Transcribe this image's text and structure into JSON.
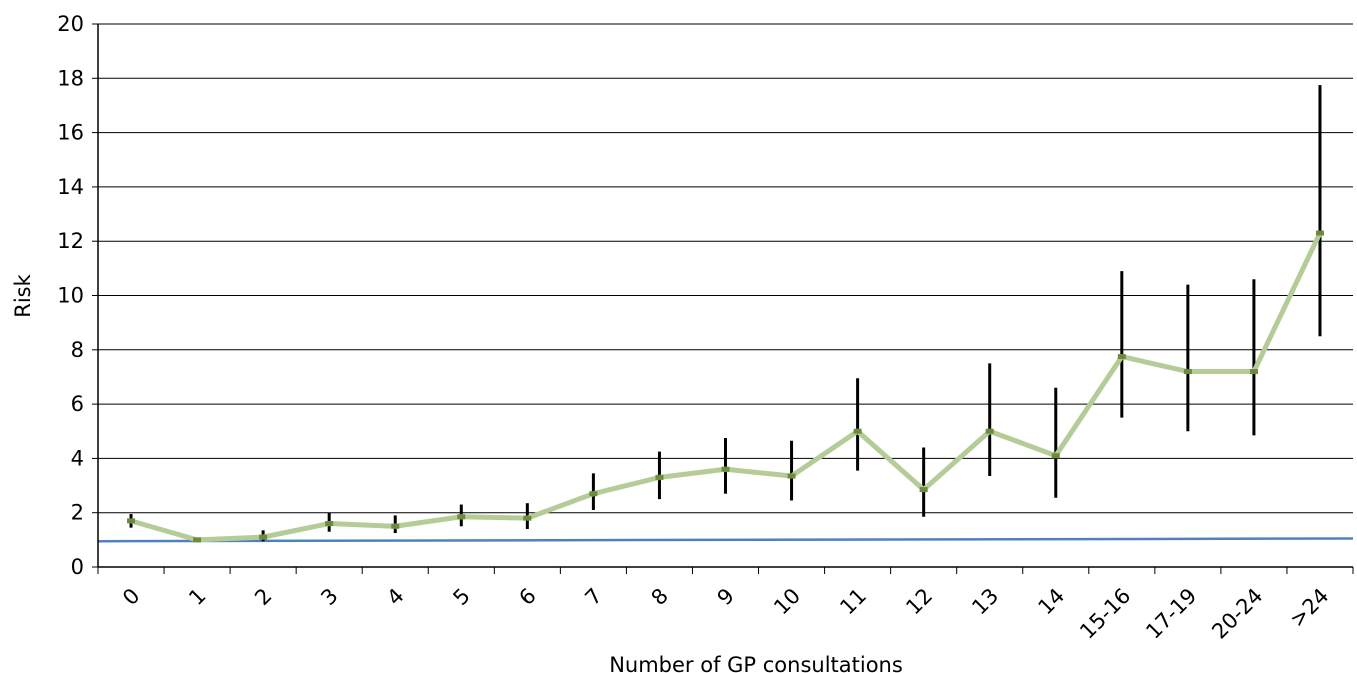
{
  "chart_data": {
    "type": "line",
    "title": "",
    "xlabel": "Number of GP consultations",
    "ylabel": "Risk",
    "ylim": [
      0,
      20
    ],
    "yticks": [
      0,
      2,
      4,
      6,
      8,
      10,
      12,
      14,
      16,
      18,
      20
    ],
    "grid": true,
    "legend": "none",
    "categories": [
      "0",
      "1",
      "2",
      "3",
      "4",
      "5",
      "6",
      "7",
      "8",
      "9",
      "10",
      "11",
      "12",
      "13",
      "14",
      "15-16",
      "17-19",
      "20-24",
      ">24"
    ],
    "series": [
      {
        "color": "#b5cc98",
        "marker_color": "#6e8a3c",
        "values": [
          1.7,
          1.0,
          1.1,
          1.6,
          1.5,
          1.85,
          1.8,
          2.7,
          3.3,
          3.6,
          3.35,
          5.0,
          2.85,
          5.0,
          4.1,
          7.75,
          7.2,
          7.2,
          12.3
        ],
        "error_low": [
          1.45,
          0.95,
          0.95,
          1.3,
          1.25,
          1.5,
          1.4,
          2.1,
          2.5,
          2.7,
          2.45,
          3.55,
          1.85,
          3.35,
          2.55,
          5.5,
          5.0,
          4.85,
          8.5
        ],
        "error_high": [
          1.95,
          1.05,
          1.35,
          2.0,
          1.9,
          2.3,
          2.35,
          3.45,
          4.25,
          4.75,
          4.65,
          6.95,
          4.4,
          7.5,
          6.6,
          10.9,
          10.4,
          10.6,
          17.75
        ],
        "error_color": "#000000"
      }
    ],
    "reference_line": {
      "start": 0.95,
      "end": 1.05,
      "color": "#4f81bd"
    }
  }
}
